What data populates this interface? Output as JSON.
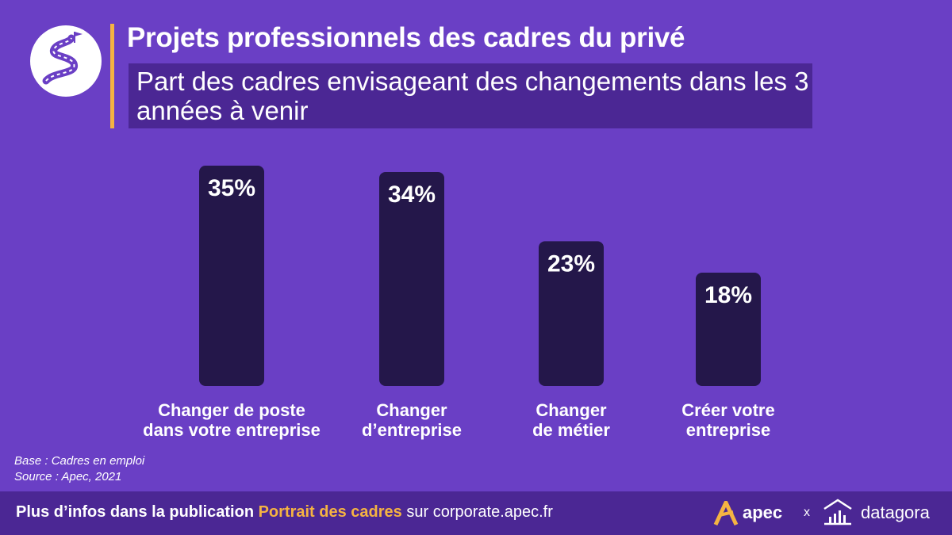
{
  "header": {
    "title": "Projets professionnels des cadres du privé",
    "subtitle": "Part des cadres envisageant des changements dans les 3 années à venir"
  },
  "chart_data": {
    "type": "bar",
    "title": "Part des cadres envisageant des changements dans les 3 années à venir",
    "categories": [
      [
        "Changer de poste",
        "dans votre entreprise"
      ],
      [
        "Changer",
        "d’entreprise"
      ],
      [
        "Changer",
        "de métier"
      ],
      [
        "Créer votre",
        "entreprise"
      ]
    ],
    "values": [
      35,
      34,
      23,
      18
    ],
    "value_labels": [
      "35%",
      "34%",
      "23%",
      "18%"
    ],
    "unit": "%",
    "ylim": [
      0,
      40
    ],
    "xlabel": "",
    "ylabel": "",
    "grid": false,
    "bar_color": "#24174a"
  },
  "source": {
    "base": "Base :  Cadres en emploi",
    "source": "Source : Apec, 2021"
  },
  "footer": {
    "prefix": "Plus d’infos dans la publication",
    "publication": "Portrait des cadres",
    "suffix": "sur corporate.apec.fr",
    "brand1": "apec",
    "separator": "x",
    "brand2": "datagora"
  },
  "colors": {
    "background": "#6a3fc5",
    "accent": "#f5b342",
    "box": "#4b2794",
    "bar": "#24174a"
  }
}
